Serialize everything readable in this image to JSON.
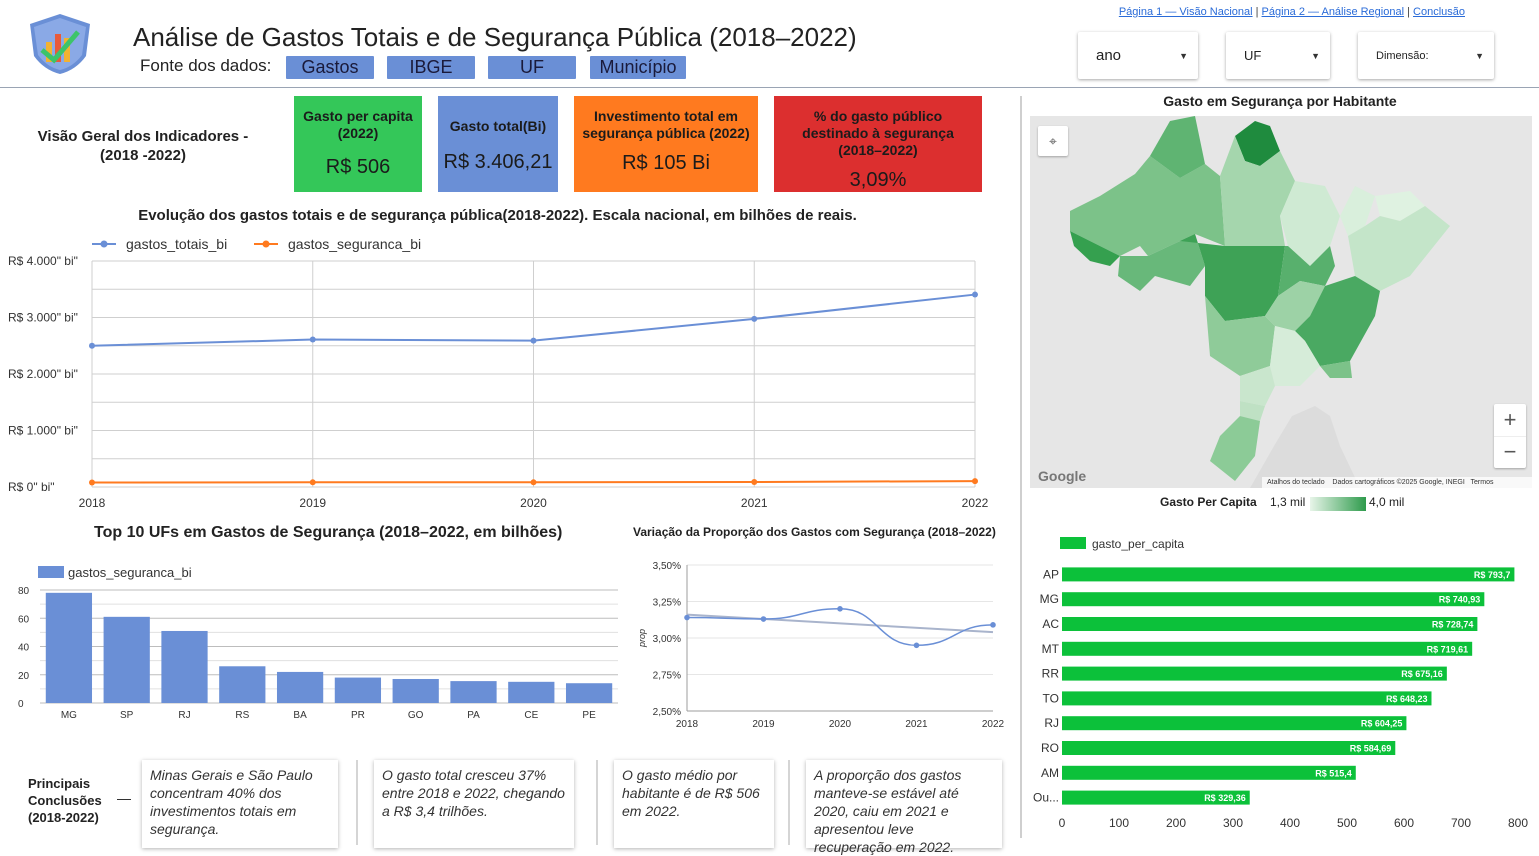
{
  "header": {
    "title": "Análise de Gastos Totais e de Segurança Pública (2018–2022)",
    "fonte_label": "Fonte dos dados:",
    "sources": [
      "Gastos",
      "IBGE",
      "UF",
      "Município"
    ],
    "nav": {
      "page1": "Página 1 — Visão Nacional",
      "sep1": "|",
      "page2": "Página 2 — Análise Regional",
      "sep2": "|",
      "page3": "Conclusão"
    },
    "filters": {
      "ano": "ano",
      "uf": "UF",
      "dimensao": "Dimensão:"
    }
  },
  "overview": {
    "line1": "Visão Geral dos Indicadores  -",
    "line2": "(2018 -2022)"
  },
  "kpis": [
    {
      "title": "Gasto per capita (2022)",
      "value": "R$ 506",
      "color": "#34c759"
    },
    {
      "title": "Gasto total(Bi)",
      "value": "R$ 3.406,21",
      "color": "#6a8fd6"
    },
    {
      "title": "Investimento total em segurança pública (2022)",
      "value": "R$ 105 Bi",
      "color": "#ff7a1f"
    },
    {
      "title": "% do gasto público destinado à segurança (2018–2022)",
      "value": "3,09%",
      "color": "#dc2f2f"
    }
  ],
  "colors": {
    "blue": "#6a8fd6",
    "orange": "#ff7a1f",
    "green_bar": "#0cc13a",
    "map_light": "#e8f5e9",
    "map_dark": "#2e9b4c"
  },
  "chart_data": [
    {
      "type": "line",
      "title": "Evolução dos gastos totais e de segurança pública(2018-2022). Escala nacional, em bilhões de reais.",
      "x": [
        "2018",
        "2019",
        "2020",
        "2021",
        "2022"
      ],
      "series": [
        {
          "name": "gastos_totais_bi",
          "values": [
            2500,
            2610,
            2590,
            2975,
            3406
          ]
        },
        {
          "name": "gastos_seguranca_bi",
          "values": [
            80,
            83,
            83,
            88,
            105
          ]
        }
      ],
      "yticks": [
        "R$ 0\" bi\"",
        "R$ 1.000\" bi\"",
        "R$ 2.000\" bi\"",
        "R$ 3.000\" bi\"",
        "R$ 4.000\" bi\""
      ],
      "ylim": [
        0,
        4000
      ],
      "grid": true,
      "legend": "top-left"
    },
    {
      "type": "bar",
      "title": "Top 10 UFs em Gastos de Segurança (2018–2022, em bilhões)",
      "categories": [
        "MG",
        "SP",
        "RJ",
        "RS",
        "BA",
        "PR",
        "GO",
        "PA",
        "CE",
        "PE"
      ],
      "series": [
        {
          "name": "gastos_seguranca_bi",
          "values": [
            78,
            61,
            51,
            26,
            22,
            18,
            17,
            15.5,
            15,
            14
          ]
        }
      ],
      "yticks": [
        "0",
        "20",
        "40",
        "60",
        "80"
      ],
      "ylim": [
        0,
        80
      ],
      "legend": "top-left"
    },
    {
      "type": "line",
      "title": "Variação da Proporção dos Gastos com Segurança (2018–2022)",
      "x": [
        "2018",
        "2019",
        "2020",
        "2021",
        "2022"
      ],
      "series": [
        {
          "name": "prop",
          "values": [
            3.14,
            3.13,
            3.2,
            2.95,
            3.09
          ]
        },
        {
          "name": "trend",
          "values": [
            3.16,
            3.13,
            3.1,
            3.07,
            3.04
          ]
        }
      ],
      "ylabel": "prop",
      "yticks": [
        "2,50%",
        "2,75%",
        "3,00%",
        "3,25%",
        "3,50%"
      ],
      "ylim": [
        2.5,
        3.5
      ]
    },
    {
      "type": "bar",
      "orientation": "horizontal",
      "title": "gasto_per_capita",
      "categories": [
        "AP",
        "MG",
        "AC",
        "MT",
        "RR",
        "TO",
        "RJ",
        "RO",
        "AM",
        "Ou..."
      ],
      "series": [
        {
          "name": "gasto_per_capita",
          "values": [
            793.7,
            740.93,
            728.74,
            719.61,
            675.16,
            648.23,
            604.25,
            584.69,
            515.4,
            329.36
          ]
        }
      ],
      "labels": [
        "R$ 793,7",
        "R$ 740,93",
        "R$ 728,74",
        "R$ 719,61",
        "R$ 675,16",
        "R$ 648,23",
        "R$ 604,25",
        "R$ 584,69",
        "R$ 515,4",
        "R$ 329,36"
      ],
      "xticks": [
        "0",
        "100",
        "200",
        "300",
        "400",
        "500",
        "600",
        "700",
        "800"
      ],
      "xlim": [
        0,
        800
      ],
      "legend": "top-left"
    }
  ],
  "map": {
    "title": "Gasto em Segurança por Habitante",
    "attribution": "Atalhos do teclado",
    "attribution2": "Dados cartográficos ©2025 Google, INEGI",
    "terms": "Termos",
    "google": "Google",
    "zoom_in": "+",
    "zoom_out": "−",
    "legend_title": "Gasto Per Capita",
    "legend_min": "1,3 mil",
    "legend_max": "4,0 mil"
  },
  "conclusions": {
    "title": "Principais Conclusões (2018-2022)",
    "dash": "—",
    "notes": [
      "Minas Gerais e São Paulo concentram 40% dos investimentos totais em segurança.",
      "O gasto total cresceu 37% entre 2018 e 2022, chegando a R$ 3,4 trilhões.",
      "O gasto médio por habitante é de R$ 506 em 2022.",
      "A proporção dos gastos manteve-se estável até 2020, caiu em 2021 e apresentou leve recuperação em 2022."
    ]
  }
}
